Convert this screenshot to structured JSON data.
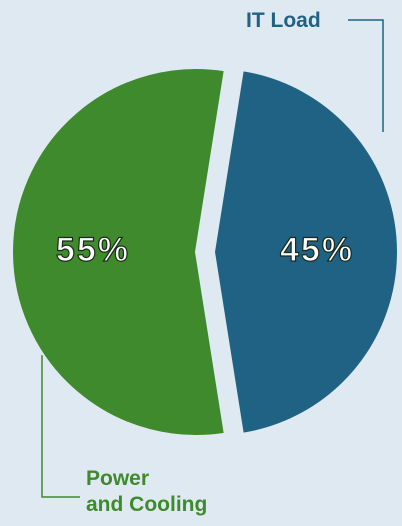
{
  "chart_data": {
    "type": "pie",
    "categories": [
      "Power\nand Cooling",
      "IT Load"
    ],
    "values": [
      55,
      45
    ],
    "value_labels": [
      "55%",
      "45%"
    ],
    "colors": [
      "#3f8a2c",
      "#1f6284"
    ]
  }
}
